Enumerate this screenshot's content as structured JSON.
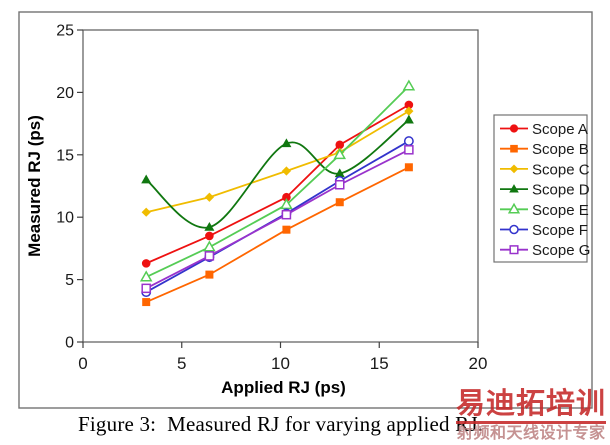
{
  "figure": {
    "caption": "Figure 3:  Measured RJ for varying applied RJ."
  },
  "watermark": {
    "line1": "易迪拓培训",
    "line2": "射频和天线设计专家",
    "color": "#C62828",
    "line2_color": "#BC8080"
  },
  "chart_data": {
    "type": "line",
    "title": "",
    "xlabel": "Applied RJ (ps)",
    "ylabel": "Measured RJ (ps)",
    "xlim": [
      0,
      20
    ],
    "ylim": [
      0,
      25
    ],
    "xticks": [
      0,
      5,
      10,
      15,
      20
    ],
    "yticks": [
      0,
      5,
      10,
      15,
      20,
      25
    ],
    "grid": false,
    "legend_position": "right",
    "x": [
      3.2,
      6.4,
      10.3,
      13,
      16.5
    ],
    "series": [
      {
        "name": "Scope A",
        "color": "#EE1111",
        "marker": "circle-filled",
        "smooth": false,
        "values": [
          6.3,
          8.5,
          11.6,
          15.8,
          19.0
        ]
      },
      {
        "name": "Scope B",
        "color": "#FF6600",
        "marker": "square-filled",
        "smooth": false,
        "values": [
          3.2,
          5.4,
          9.0,
          11.2,
          14.0
        ]
      },
      {
        "name": "Scope C",
        "color": "#F0BC00",
        "marker": "diamond-filled",
        "smooth": false,
        "values": [
          10.4,
          11.6,
          13.7,
          15.2,
          18.5
        ]
      },
      {
        "name": "Scope D",
        "color": "#107710",
        "marker": "triangle-filled",
        "smooth": true,
        "values": [
          13.0,
          9.2,
          15.9,
          13.5,
          17.8
        ]
      },
      {
        "name": "Scope E",
        "color": "#55CC55",
        "marker": "triangle-open",
        "smooth": false,
        "values": [
          5.2,
          7.6,
          11.0,
          15.0,
          20.5
        ]
      },
      {
        "name": "Scope F",
        "color": "#3333CC",
        "marker": "circle-open",
        "smooth": false,
        "values": [
          4.0,
          6.8,
          10.3,
          12.9,
          16.1
        ]
      },
      {
        "name": "Scope G",
        "color": "#9933CC",
        "marker": "square-open",
        "smooth": false,
        "values": [
          4.3,
          6.9,
          10.2,
          12.6,
          15.4
        ]
      }
    ]
  }
}
